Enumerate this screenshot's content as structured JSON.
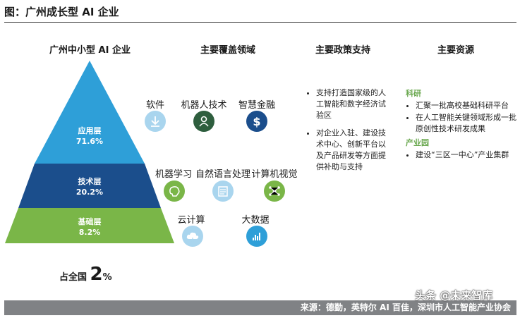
{
  "figure_title": "图：广州成长型 AI 企业",
  "columns": {
    "pyramid_title": "广州中小型 AI 企业",
    "domains": "主要覆盖领域",
    "policy": "主要政策支持",
    "resources": "主要资源"
  },
  "pyramid": {
    "top": {
      "name": "应用层",
      "pct": "71.6%",
      "color": "#2e9fd8"
    },
    "middle": {
      "name": "技术层",
      "pct": "20.2%",
      "color": "#1b4e8c"
    },
    "bottom": {
      "name": "基础层",
      "pct": "8.2%",
      "color": "#7ab648"
    }
  },
  "domains": {
    "app": [
      {
        "label": "软件",
        "icon": "download-icon",
        "color": "#a9d5ee"
      },
      {
        "label": "机器人技术",
        "icon": "person-icon",
        "color": "#2e5e3e"
      },
      {
        "label": "智慧金融",
        "icon": "dollar-icon",
        "color": "#1b4e8c"
      }
    ],
    "tech": [
      {
        "label": "机器学习",
        "icon": "brain-icon",
        "color": "#7ab648"
      },
      {
        "label": "自然语言处理",
        "icon": "document-icon",
        "color": "#a9d5ee"
      },
      {
        "label": "计算机视觉",
        "icon": "network-icon",
        "color": "#7ab648"
      }
    ],
    "base": [
      {
        "label": "云计算",
        "icon": "cloud-icon",
        "color": "#a9d5ee"
      },
      {
        "label": "大数据",
        "icon": "bar-chart-icon",
        "color": "#2e9fd8"
      }
    ]
  },
  "policy": [
    "支持打造国家级的人工智能和数字经济试验区",
    "对企业入驻、建设技术中心、创新平台以及产品研发等方面提供补助与支持"
  ],
  "resources": {
    "research_title": "科研",
    "research": [
      "汇聚一批高校基础科研平台",
      "在人工智能关键领域形成一批原创性技术研发成果"
    ],
    "industrial_title": "产业园",
    "industrial": [
      "建设“三区一中心”产业集群"
    ]
  },
  "share": {
    "prefix": "占全国",
    "number": "2",
    "unit": "%"
  },
  "source": "来源：德勤，英特尔 AI 百佳，深圳市人工智能产业协会",
  "watermark": "头条 @未来智库"
}
